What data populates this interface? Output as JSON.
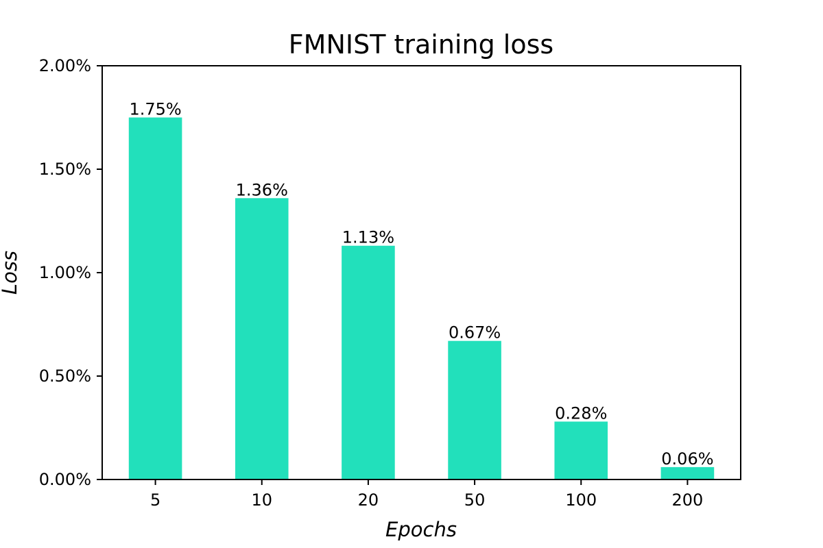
{
  "chart_data": {
    "type": "bar",
    "title": "FMNIST training loss",
    "xlabel": "Epochs",
    "ylabel": "Loss",
    "categories": [
      "5",
      "10",
      "20",
      "50",
      "100",
      "200"
    ],
    "values": [
      1.75,
      1.36,
      1.13,
      0.67,
      0.28,
      0.06
    ],
    "data_labels": [
      "1.75%",
      "1.36%",
      "1.13%",
      "0.67%",
      "0.28%",
      "0.06%"
    ],
    "ylim": [
      0,
      2.0
    ],
    "y_ticks": [
      0,
      0.5,
      1.0,
      1.5,
      2.0
    ],
    "y_tick_labels": [
      "0.00%",
      "0.50%",
      "1.00%",
      "1.50%",
      "2.00%"
    ],
    "bar_color": "#22e0bb",
    "grid": false,
    "legend": "none"
  }
}
